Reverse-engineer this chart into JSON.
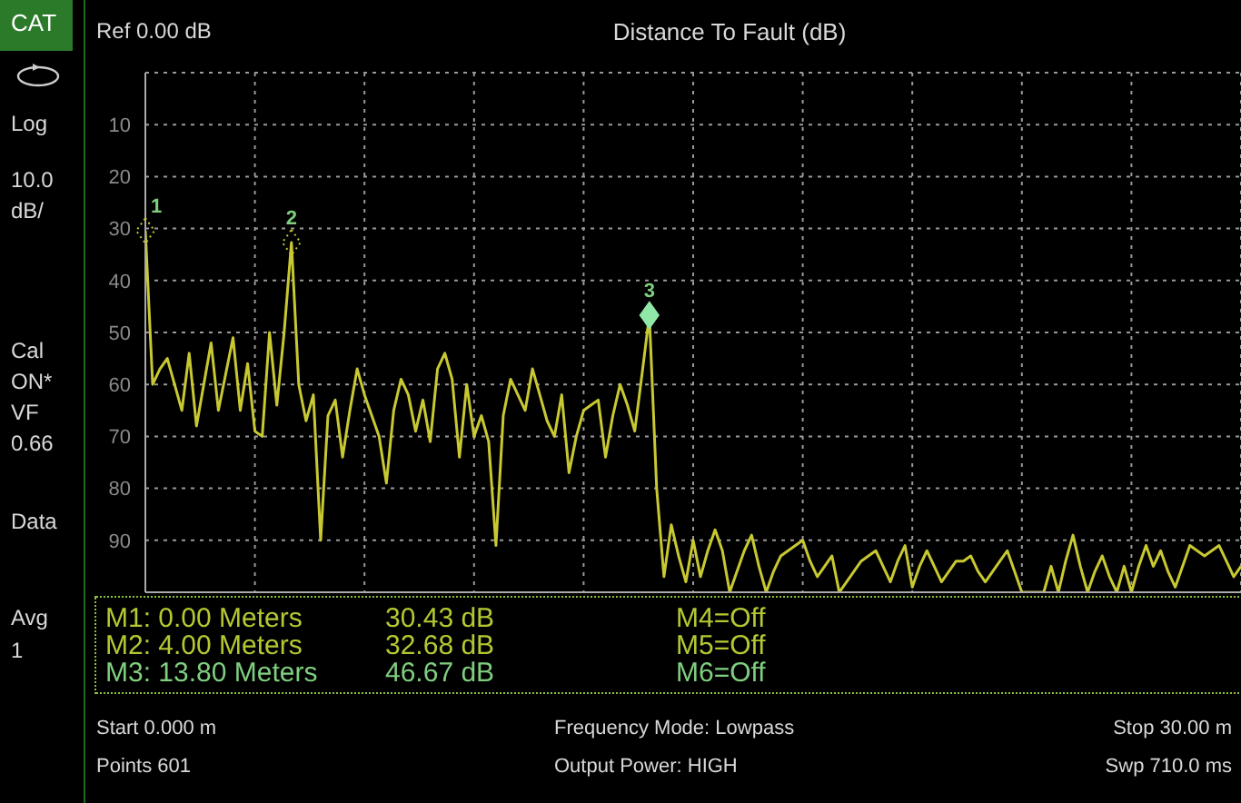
{
  "chart_data": {
    "type": "line",
    "title": "Distance To Fault (dB)",
    "categories": [
      null,
      null,
      null,
      null,
      null,
      null,
      null,
      null,
      null,
      null,
      null,
      null,
      null,
      null,
      null,
      null,
      null,
      null,
      null,
      null,
      null,
      null,
      null,
      null,
      null,
      null,
      null,
      null,
      null,
      null,
      null,
      null,
      null,
      null,
      null,
      null,
      null,
      null,
      null,
      null,
      null,
      null,
      null,
      null,
      null,
      null,
      null,
      null,
      null,
      null,
      null,
      null,
      null,
      null,
      null,
      null,
      null,
      null,
      null,
      null,
      null,
      null,
      null,
      null,
      null,
      null,
      null,
      null,
      null,
      null,
      null,
      null,
      null,
      null,
      null,
      null,
      null,
      null,
      null,
      null,
      null,
      null,
      null,
      null,
      null,
      null,
      null,
      null,
      null,
      null,
      null,
      null,
      null,
      null,
      null,
      null,
      null,
      null,
      null,
      null,
      null,
      null,
      null,
      null,
      null,
      null,
      null,
      null,
      null,
      null,
      null,
      null,
      null,
      null,
      null,
      null,
      null,
      null,
      null,
      null,
      null,
      null,
      null,
      null,
      null,
      null,
      null,
      null,
      null,
      null,
      null,
      null,
      null,
      null,
      null,
      null,
      null,
      null,
      null,
      null,
      null,
      null,
      null,
      null,
      null,
      null,
      null,
      null,
      null,
      null,
      null
    ],
    "values": [
      30.43,
      60,
      57,
      55,
      60,
      65,
      54,
      68,
      60,
      52,
      65,
      58,
      51,
      65,
      56,
      69,
      70,
      50,
      64,
      50,
      32.68,
      60,
      67,
      62,
      90,
      66,
      63,
      74,
      65,
      57,
      62,
      66,
      70,
      79,
      65,
      59,
      62,
      69,
      63,
      71,
      57,
      54,
      59,
      74,
      60,
      70,
      66,
      71,
      91,
      66,
      59,
      62,
      65,
      57,
      62,
      67,
      70,
      62,
      77,
      70,
      65,
      64,
      63,
      74,
      66,
      60,
      64,
      69,
      58,
      46.67,
      80,
      97,
      87,
      93,
      98,
      90,
      97,
      92,
      88,
      92,
      100,
      96,
      92,
      89,
      95,
      100,
      96,
      93,
      92,
      91,
      90,
      94,
      97,
      95,
      93,
      100,
      98,
      96,
      94,
      93,
      92,
      95,
      98,
      94,
      91,
      99,
      95,
      92,
      95,
      98,
      96,
      94,
      94,
      93,
      96,
      98,
      96,
      94,
      92,
      96,
      100,
      100,
      100,
      100,
      95,
      100,
      94,
      89,
      95,
      100,
      96,
      93,
      97,
      100,
      95,
      100,
      95,
      91,
      95,
      92,
      96,
      99,
      95,
      91,
      92,
      93,
      92,
      91,
      94,
      97,
      95
    ],
    "color": "#c8c832",
    "ylim": [
      100,
      0
    ],
    "yticks": [
      10,
      20,
      30,
      40,
      50,
      60,
      70,
      80,
      90
    ],
    "tick_labels": "y",
    "grid": true,
    "annotations": [
      "CAT",
      "Ref 0.00 dB",
      "Log",
      "10.0",
      "dB/",
      "Cal",
      "ON*",
      "VF",
      "0.66",
      "Data",
      "Avg",
      "1",
      "M1: 0.00 Meters",
      "30.43 dB",
      "M4=Off",
      "M2: 4.00 Meters",
      "32.68 dB",
      "M5=Off",
      "M3: 13.80 Meters",
      "46.67 dB",
      "M6=Off",
      "Start 0.000 m",
      "Frequency Mode: Lowpass",
      "Stop 30.00 m",
      "Points 601",
      "Output Power: HIGH",
      "Swp 710.0 ms",
      {
        "text": "1",
        "y": 30.43
      },
      {
        "text": "2",
        "y": 32.68
      },
      {
        "text": "3",
        "y": 46.67
      }
    ]
  }
}
